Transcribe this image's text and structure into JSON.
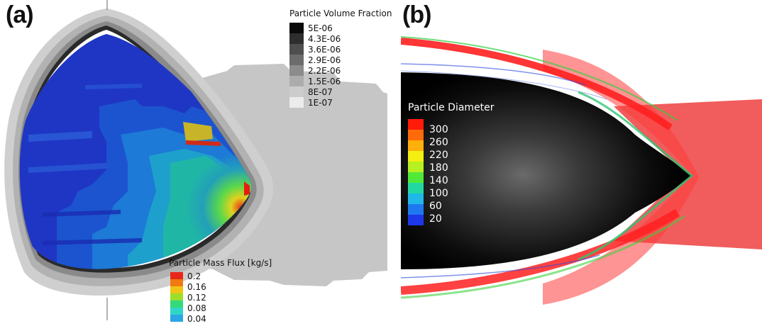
{
  "panel_a": {
    "label": "(a)",
    "volume_fraction_legend": {
      "title": "Particle Volume Fraction",
      "levels": [
        "5E-06",
        "4.3E-06",
        "3.6E-06",
        "2.9E-06",
        "2.2E-06",
        "1.5E-06",
        "8E-07",
        "1E-07"
      ],
      "colors": [
        "#0a0a0a",
        "#2e2e2e",
        "#4e4e4e",
        "#6c6c6c",
        "#8c8c8c",
        "#acacac",
        "#cccccc",
        "#ececec"
      ]
    },
    "mass_flux_legend": {
      "title": "Particle Mass Flux [kg/s]",
      "levels": [
        "0.2",
        "0.16",
        "0.12",
        "0.08",
        "0.04"
      ],
      "colors": [
        "#e8271a",
        "#f07a12",
        "#f0c414",
        "#9adf2a",
        "#34d97c",
        "#2fd6c8",
        "#28a6e6"
      ]
    }
  },
  "panel_b": {
    "label": "(b)",
    "diameter_legend": {
      "title": "Particle Diameter",
      "levels": [
        "300",
        "260",
        "220",
        "180",
        "140",
        "100",
        "60",
        "20"
      ],
      "colors": [
        "#ff1a0a",
        "#ff6a0a",
        "#ffb00a",
        "#f4ee12",
        "#b6f020",
        "#52e83a",
        "#22d8a0",
        "#20b8e8",
        "#2078f0",
        "#1c38e8"
      ]
    }
  }
}
